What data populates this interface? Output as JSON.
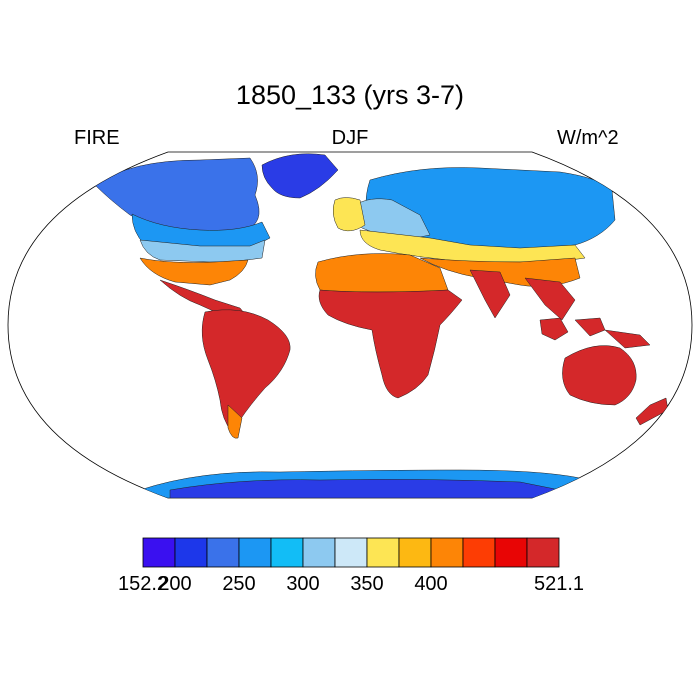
{
  "title": "1850_133 (yrs 3-7)",
  "left_label": "FIRE",
  "center_label": "DJF",
  "right_label": "W/m^2",
  "colorbar": {
    "colors": [
      "#3a10f0",
      "#1d37ea",
      "#3a72ea",
      "#1c97f3",
      "#12bdf6",
      "#8dc9f0",
      "#cde8f8",
      "#fde554",
      "#fdb812",
      "#fd8506",
      "#fd3d04",
      "#e80505",
      "#d4282a"
    ],
    "labels": [
      "152.2",
      "200",
      "250",
      "300",
      "350",
      "400",
      "521.1"
    ],
    "label_boundary_index": [
      0,
      1,
      3,
      5,
      7,
      9,
      13
    ]
  },
  "map_colors": {
    "polar": "#2a3ce6",
    "cold": "#3a72ea",
    "cool": "#1c97f3",
    "mild": "#8dc9f0",
    "warm": "#fde554",
    "hot": "#fd8506",
    "tropic": "#d4282a"
  }
}
